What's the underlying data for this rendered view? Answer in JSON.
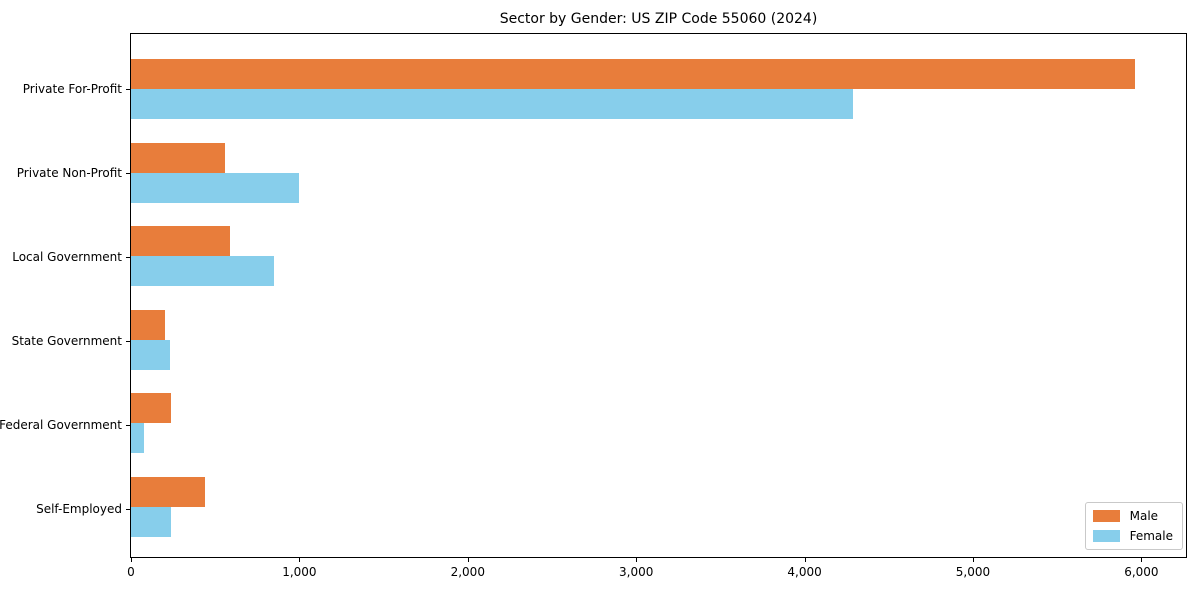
{
  "chart_data": {
    "type": "bar",
    "orientation": "horizontal",
    "title": "Sector by Gender: US ZIP Code 55060 (2024)",
    "categories": [
      "Private For-Profit",
      "Private Non-Profit",
      "Local Government",
      "State Government",
      "Federal Government",
      "Self-Employed"
    ],
    "series": [
      {
        "name": "Male",
        "color": "#e87d3b",
        "values": [
          5960,
          560,
          590,
          200,
          240,
          440
        ]
      },
      {
        "name": "Female",
        "color": "#87ceeb",
        "values": [
          4290,
          1000,
          850,
          230,
          80,
          240
        ]
      }
    ],
    "xlabel": "",
    "ylabel": "",
    "xlim": [
      0,
      6265
    ],
    "xticks": [
      0,
      1000,
      2000,
      3000,
      4000,
      5000,
      6000
    ],
    "xtick_labels": [
      "0",
      "1,000",
      "2,000",
      "3,000",
      "4,000",
      "5,000",
      "6,000"
    ],
    "grid": false,
    "legend_position": "lower right",
    "colors": {
      "axis": "#000000",
      "legend_border": "#c9c9c9",
      "background": "#ffffff"
    }
  }
}
